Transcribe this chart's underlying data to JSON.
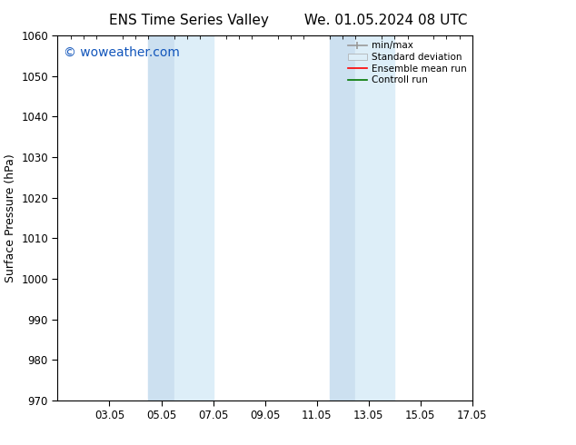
{
  "title_left": "ENS Time Series Valley",
  "title_right": "We. 01.05.2024 08 UTC",
  "ylabel": "Surface Pressure (hPa)",
  "ylim": [
    970,
    1060
  ],
  "yticks": [
    970,
    980,
    990,
    1000,
    1010,
    1020,
    1030,
    1040,
    1050,
    1060
  ],
  "xlim_start": 0.0,
  "xlim_end": 16.0,
  "xtick_positions": [
    2,
    4,
    6,
    8,
    10,
    12,
    14,
    16
  ],
  "xtick_labels": [
    "03.05",
    "05.05",
    "07.05",
    "09.05",
    "11.05",
    "13.05",
    "15.05",
    "17.05"
  ],
  "shaded_bands": [
    {
      "x_start": 3.5,
      "x_end": 4.5
    },
    {
      "x_start": 4.5,
      "x_end": 6.0
    },
    {
      "x_start": 10.5,
      "x_end": 11.5
    },
    {
      "x_start": 11.5,
      "x_end": 13.0
    }
  ],
  "band_color": "#ddeef8",
  "band_alpha": 1.0,
  "watermark_text": "© woweather.com",
  "watermark_color": "#1155bb",
  "watermark_fontsize": 10,
  "legend_labels": [
    "min/max",
    "Standard deviation",
    "Ensemble mean run",
    "Controll run"
  ],
  "legend_colors_line": [
    "#aaaaaa",
    "#cccccc",
    "#ff0000",
    "#008800"
  ],
  "bg_color": "#ffffff",
  "title_fontsize": 11,
  "axis_label_fontsize": 9,
  "tick_fontsize": 8.5
}
